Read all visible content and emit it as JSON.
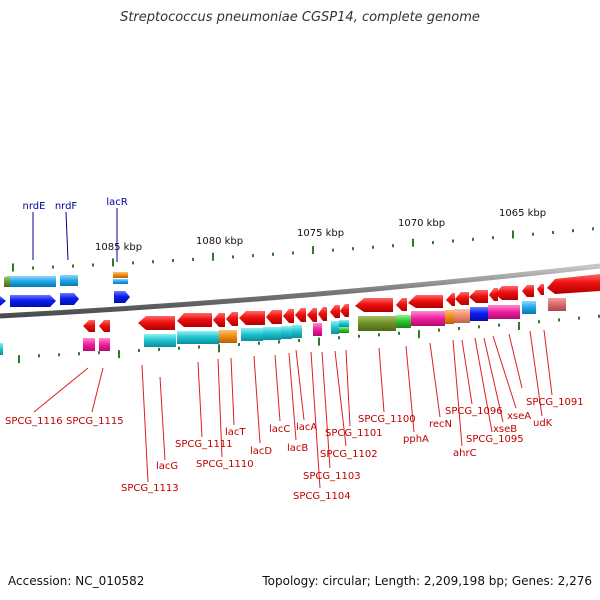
{
  "title": "Streptococcus pneumoniae CGSP14, complete genome",
  "footer": {
    "accession": "Accession: NC_010582",
    "summary": "Topology: circular; Length: 2,209,198 bp; Genes: 2,276"
  },
  "scale": {
    "units": "kbp",
    "ticks": [
      {
        "label": "1085 kbp"
      },
      {
        "label": "1080 kbp"
      },
      {
        "label": "1075 kbp"
      },
      {
        "label": "1070 kbp"
      },
      {
        "label": "1065 kbp"
      }
    ]
  },
  "colors": {
    "forward_gene": "#0a1ef0",
    "reverse_gene": "#ee0000",
    "forward_label": "#00009a",
    "reverse_label": "#c00000",
    "backbone": "#808080",
    "tick": "#2a7a2a"
  },
  "forward_labels": [
    "nrdE",
    "nrdF",
    "lacR"
  ],
  "reverse_labels": [
    "SPCG_1116",
    "SPCG_1115",
    "SPCG_1113",
    "lacG",
    "SPCG_1111",
    "SPCG_1110",
    "lacT",
    "lacD",
    "lacC",
    "lacB",
    "lacA",
    "SPCG_1104",
    "SPCG_1103",
    "SPCG_1102",
    "SPCG_1101",
    "SPCG_1100",
    "pphA",
    "recN",
    "ahrC",
    "SPCG_1096",
    "SPCG_1095",
    "xseB",
    "xseA",
    "udK",
    "SPCG_1091"
  ]
}
